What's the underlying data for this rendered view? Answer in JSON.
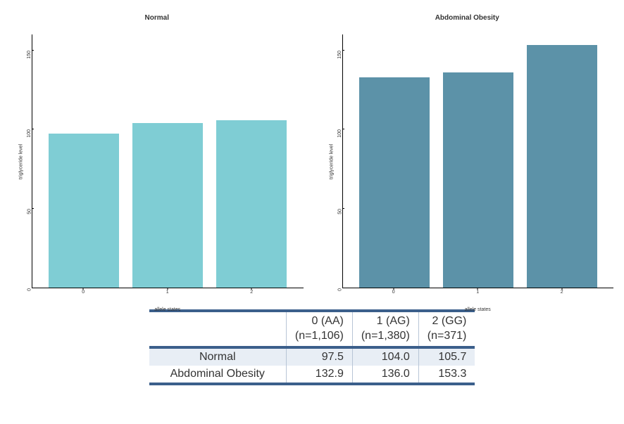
{
  "charts": [
    {
      "title": "Normal",
      "type": "bar",
      "bar_color": "#7fcdd4",
      "categories": [
        "0",
        "1",
        "2"
      ],
      "values": [
        97.5,
        104.0,
        105.7
      ],
      "ylim": [
        0,
        160
      ],
      "yticks": [
        0,
        50,
        100,
        150
      ],
      "ylabel": "triglyceride level",
      "xlabel": "allele states",
      "bar_width_pct": 26,
      "bar_positions_pct": [
        19,
        50,
        81
      ],
      "background_color": "#ffffff",
      "axis_color": "#000000"
    },
    {
      "title": "Abdominal Obesity",
      "type": "bar",
      "bar_color": "#5c92a8",
      "categories": [
        "0",
        "1",
        "2"
      ],
      "values": [
        132.9,
        136.0,
        153.3
      ],
      "ylim": [
        0,
        160
      ],
      "yticks": [
        0,
        50,
        100,
        150
      ],
      "ylabel": "triglyceride level",
      "xlabel": "allele states",
      "bar_width_pct": 26,
      "bar_positions_pct": [
        19,
        50,
        81
      ],
      "background_color": "#ffffff",
      "axis_color": "#000000"
    }
  ],
  "table": {
    "header_border_color": "#3b5f8b",
    "row_highlight_bg": "#e8eef5",
    "columns": [
      {
        "label_top": "0 (AA)",
        "label_bottom": "(n=1,106)"
      },
      {
        "label_top": "1 (AG)",
        "label_bottom": "(n=1,380)"
      },
      {
        "label_top": "2 (GG)",
        "label_bottom": "(n=371)"
      }
    ],
    "rows": [
      {
        "label": "Normal",
        "values": [
          "97.5",
          "104.0",
          "105.7"
        ],
        "highlight": true
      },
      {
        "label": "Abdominal Obesity",
        "values": [
          "132.9",
          "136.0",
          "153.3"
        ],
        "highlight": false
      }
    ]
  }
}
